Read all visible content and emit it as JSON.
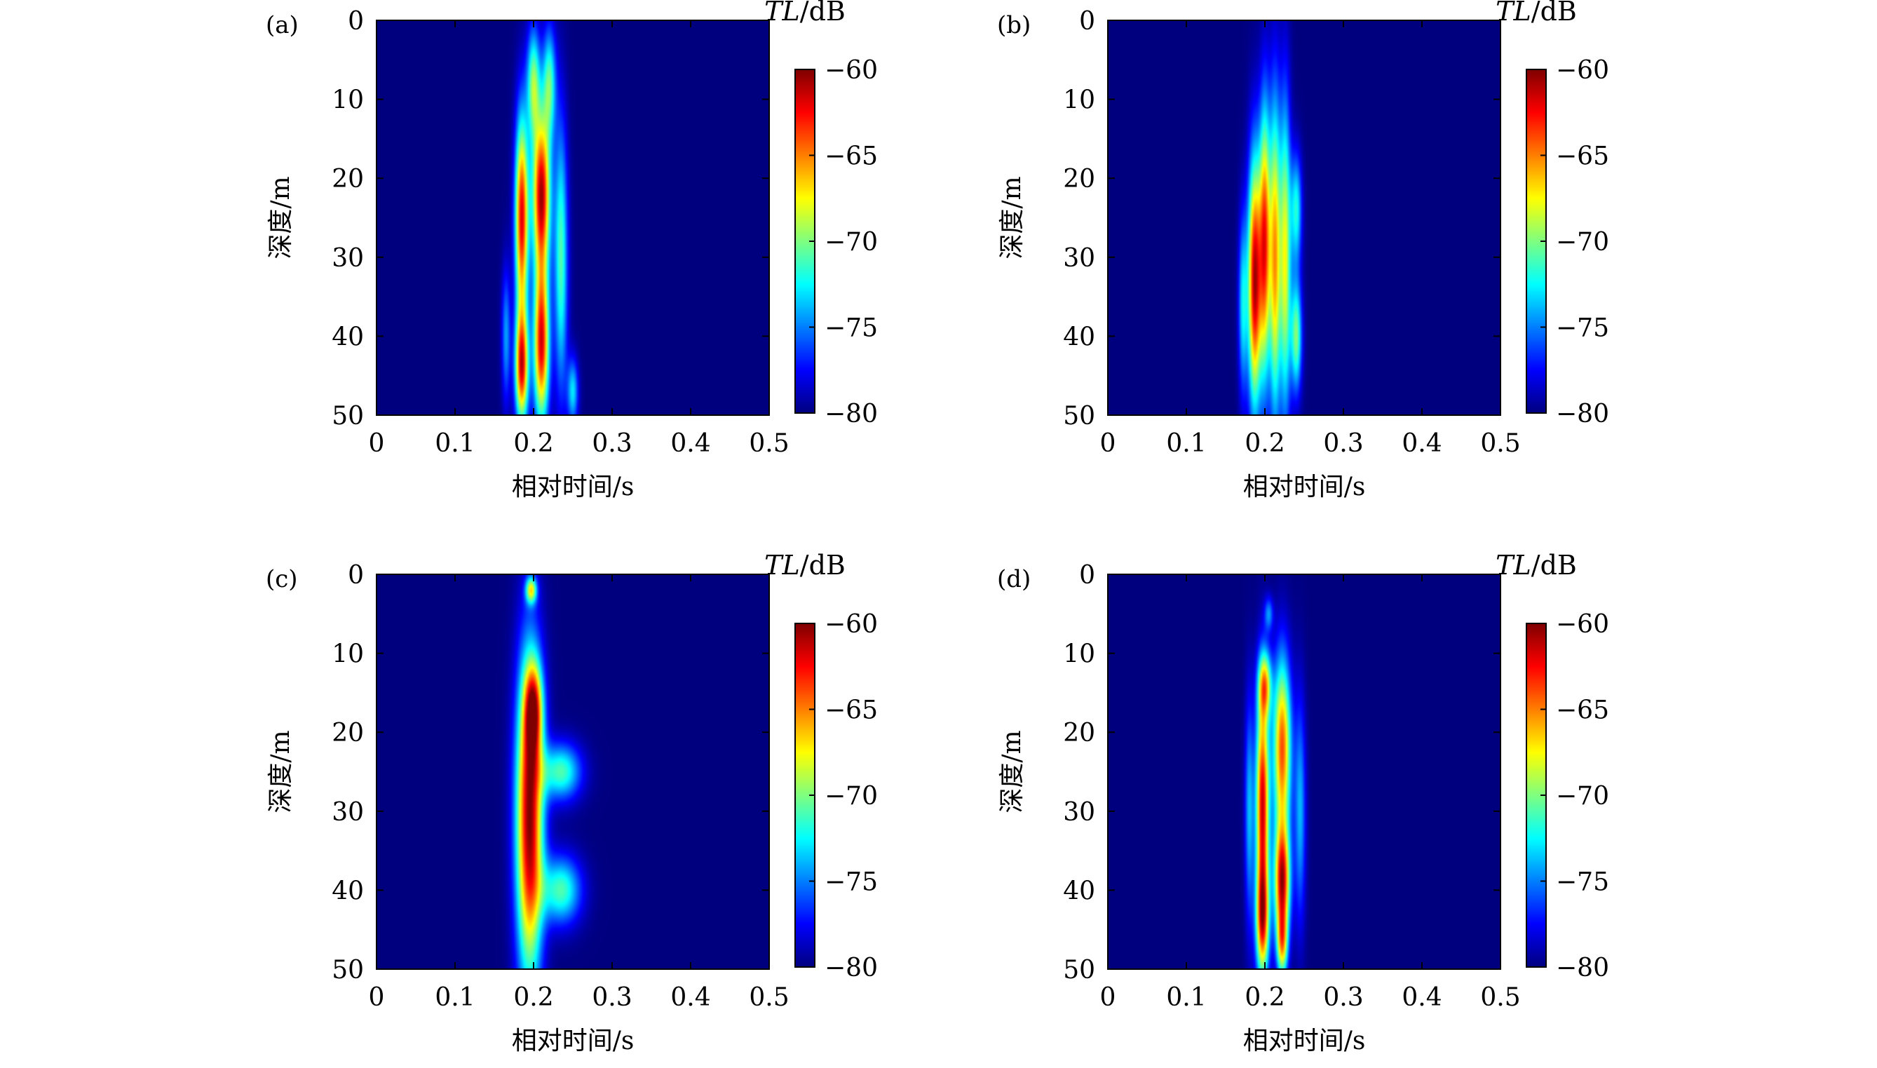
{
  "colormap": {
    "name": "jet",
    "stops": [
      "#00007f",
      "#0000ff",
      "#007fff",
      "#00ffff",
      "#7fff7f",
      "#ffff00",
      "#ff7f00",
      "#ff0000",
      "#7f0000"
    ]
  },
  "chart_data": [
    {
      "type": "heatmap",
      "panel_label": "(a)",
      "xlabel": "相对时间/s",
      "ylabel": "深度/m",
      "xlim": [
        0,
        0.5
      ],
      "ylim": [
        0,
        50
      ],
      "y_inverted": true,
      "xticks": [
        "0",
        "0.1",
        "0.2",
        "0.3",
        "0.4",
        "0.5"
      ],
      "yticks": [
        "0",
        "10",
        "20",
        "30",
        "40",
        "50"
      ],
      "colorbar": {
        "title_italic": "TL",
        "title_unit": "/dB",
        "range": [
          -80,
          -60
        ],
        "ticks": [
          "−60",
          "−65",
          "−70",
          "−75",
          "−80"
        ]
      },
      "hotspots": [
        {
          "x": 0.185,
          "y": 25,
          "sx": 0.006,
          "sy": 9,
          "v": 0.9
        },
        {
          "x": 0.185,
          "y": 44,
          "sx": 0.006,
          "sy": 5,
          "v": 0.85
        },
        {
          "x": 0.21,
          "y": 22,
          "sx": 0.008,
          "sy": 7,
          "v": 0.95
        },
        {
          "x": 0.21,
          "y": 41,
          "sx": 0.007,
          "sy": 7,
          "v": 0.9
        },
        {
          "x": 0.2,
          "y": 8,
          "sx": 0.006,
          "sy": 5,
          "v": 0.5
        },
        {
          "x": 0.22,
          "y": 8,
          "sx": 0.006,
          "sy": 5,
          "v": 0.45
        },
        {
          "x": 0.235,
          "y": 30,
          "sx": 0.006,
          "sy": 12,
          "v": 0.45
        },
        {
          "x": 0.25,
          "y": 47,
          "sx": 0.005,
          "sy": 3,
          "v": 0.35
        },
        {
          "x": 0.165,
          "y": 40,
          "sx": 0.004,
          "sy": 6,
          "v": 0.28
        }
      ]
    },
    {
      "type": "heatmap",
      "panel_label": "(b)",
      "xlabel": "相对时间/s",
      "ylabel": "深度/m",
      "xlim": [
        0,
        0.5
      ],
      "ylim": [
        0,
        50
      ],
      "y_inverted": true,
      "xticks": [
        "0",
        "0.1",
        "0.2",
        "0.3",
        "0.4",
        "0.5"
      ],
      "yticks": [
        "0",
        "10",
        "20",
        "30",
        "40",
        "50"
      ],
      "colorbar": {
        "title_italic": "TL",
        "title_unit": "/dB",
        "range": [
          -80,
          -60
        ],
        "ticks": [
          "−60",
          "−65",
          "−70",
          "−75",
          "−80"
        ]
      },
      "hotspots": [
        {
          "x": 0.187,
          "y": 33,
          "sx": 0.006,
          "sy": 11,
          "v": 0.95
        },
        {
          "x": 0.2,
          "y": 28,
          "sx": 0.005,
          "sy": 12,
          "v": 0.8
        },
        {
          "x": 0.213,
          "y": 30,
          "sx": 0.005,
          "sy": 14,
          "v": 0.7
        },
        {
          "x": 0.226,
          "y": 30,
          "sx": 0.005,
          "sy": 14,
          "v": 0.6
        },
        {
          "x": 0.24,
          "y": 40,
          "sx": 0.005,
          "sy": 5,
          "v": 0.5
        },
        {
          "x": 0.24,
          "y": 24,
          "sx": 0.005,
          "sy": 5,
          "v": 0.4
        },
        {
          "x": 0.172,
          "y": 36,
          "sx": 0.004,
          "sy": 8,
          "v": 0.35
        }
      ]
    },
    {
      "type": "heatmap",
      "panel_label": "(c)",
      "xlabel": "相对时间/s",
      "ylabel": "深度/m",
      "xlim": [
        0,
        0.5
      ],
      "ylim": [
        0,
        50
      ],
      "y_inverted": true,
      "xticks": [
        "0",
        "0.1",
        "0.2",
        "0.3",
        "0.4",
        "0.5"
      ],
      "yticks": [
        "0",
        "10",
        "20",
        "30",
        "40",
        "50"
      ],
      "colorbar": {
        "title_italic": "TL",
        "title_unit": "/dB",
        "range": [
          -80,
          -60
        ],
        "ticks": [
          "−60",
          "−65",
          "−70",
          "−75",
          "−80"
        ]
      },
      "hotspots": [
        {
          "x": 0.195,
          "y": 31,
          "sx": 0.012,
          "sy": 14,
          "v": 1.0
        },
        {
          "x": 0.197,
          "y": 2,
          "sx": 0.005,
          "sy": 1.2,
          "v": 0.55
        },
        {
          "x": 0.235,
          "y": 25,
          "sx": 0.018,
          "sy": 2.5,
          "v": 0.45
        },
        {
          "x": 0.235,
          "y": 40,
          "sx": 0.018,
          "sy": 3,
          "v": 0.45
        },
        {
          "x": 0.2,
          "y": 17,
          "sx": 0.008,
          "sy": 4,
          "v": 0.6
        }
      ]
    },
    {
      "type": "heatmap",
      "panel_label": "(d)",
      "xlabel": "相对时间/s",
      "ylabel": "深度/m",
      "xlim": [
        0,
        0.5
      ],
      "ylim": [
        0,
        50
      ],
      "y_inverted": true,
      "xticks": [
        "0",
        "0.1",
        "0.2",
        "0.3",
        "0.4",
        "0.5"
      ],
      "yticks": [
        "0",
        "10",
        "20",
        "30",
        "40",
        "50"
      ],
      "colorbar": {
        "title_italic": "TL",
        "title_unit": "/dB",
        "range": [
          -80,
          -60
        ],
        "ticks": [
          "−60",
          "−65",
          "−70",
          "−75",
          "−80"
        ]
      },
      "hotspots": [
        {
          "x": 0.197,
          "y": 29,
          "sx": 0.006,
          "sy": 10,
          "v": 0.92
        },
        {
          "x": 0.197,
          "y": 44,
          "sx": 0.006,
          "sy": 5,
          "v": 0.7
        },
        {
          "x": 0.222,
          "y": 22,
          "sx": 0.008,
          "sy": 8,
          "v": 0.8
        },
        {
          "x": 0.222,
          "y": 39,
          "sx": 0.007,
          "sy": 5,
          "v": 0.9
        },
        {
          "x": 0.222,
          "y": 47,
          "sx": 0.005,
          "sy": 3,
          "v": 0.55
        },
        {
          "x": 0.2,
          "y": 14,
          "sx": 0.006,
          "sy": 3,
          "v": 0.55
        },
        {
          "x": 0.245,
          "y": 30,
          "sx": 0.005,
          "sy": 10,
          "v": 0.3
        },
        {
          "x": 0.18,
          "y": 30,
          "sx": 0.004,
          "sy": 10,
          "v": 0.3
        },
        {
          "x": 0.205,
          "y": 5,
          "sx": 0.004,
          "sy": 1.5,
          "v": 0.25
        }
      ]
    }
  ]
}
